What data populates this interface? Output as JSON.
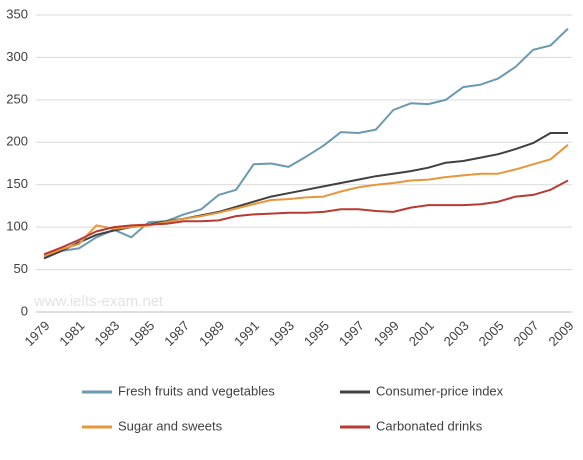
{
  "chart_data": {
    "type": "line",
    "categories": [
      "1979",
      null,
      "1981",
      null,
      "1983",
      null,
      "1985",
      null,
      "1987",
      null,
      "1989",
      null,
      "1991",
      null,
      "1993",
      null,
      "1995",
      null,
      "1997",
      null,
      "1999",
      null,
      "2001",
      null,
      "2003",
      null,
      "2005",
      null,
      "2007",
      null,
      "2009"
    ],
    "series": [
      {
        "name": "Fresh fruits and vegetables",
        "color": "#6a9ab0",
        "values": [
          65,
          72,
          75,
          88,
          97,
          88,
          106,
          107,
          115,
          121,
          138,
          144,
          174,
          175,
          171,
          183,
          196,
          212,
          211,
          215,
          238,
          246,
          245,
          250,
          265,
          268,
          275,
          289,
          309,
          314,
          334
        ]
      },
      {
        "name": "Consumer-price index",
        "color": "#404040",
        "values": [
          63,
          72,
          82,
          91,
          96,
          100,
          103,
          107,
          110,
          114,
          118,
          124,
          130,
          136,
          140,
          144,
          148,
          152,
          156,
          160,
          163,
          166,
          170,
          176,
          178,
          182,
          186,
          192,
          199,
          211,
          211
        ]
      },
      {
        "name": "Sugar and sweets",
        "color": "#e8963a",
        "values": [
          66,
          74,
          80,
          102,
          98,
          100,
          102,
          106,
          110,
          113,
          117,
          122,
          127,
          132,
          133,
          135,
          136,
          142,
          147,
          150,
          152,
          155,
          156,
          159,
          161,
          163,
          163,
          168,
          174,
          180,
          197
        ]
      },
      {
        "name": "Carbonated drinks",
        "color": "#b83a32",
        "values": [
          68,
          76,
          85,
          95,
          100,
          102,
          103,
          104,
          107,
          107,
          108,
          113,
          115,
          116,
          117,
          117,
          118,
          121,
          121,
          119,
          118,
          123,
          126,
          126,
          126,
          127,
          130,
          136,
          138,
          144,
          155
        ]
      }
    ],
    "ylim": [
      0,
      350
    ],
    "yticks": [
      0,
      50,
      100,
      150,
      200,
      250,
      300,
      350
    ],
    "grid": true,
    "watermark": "www.ielts-exam.net",
    "legend": "bottom"
  }
}
